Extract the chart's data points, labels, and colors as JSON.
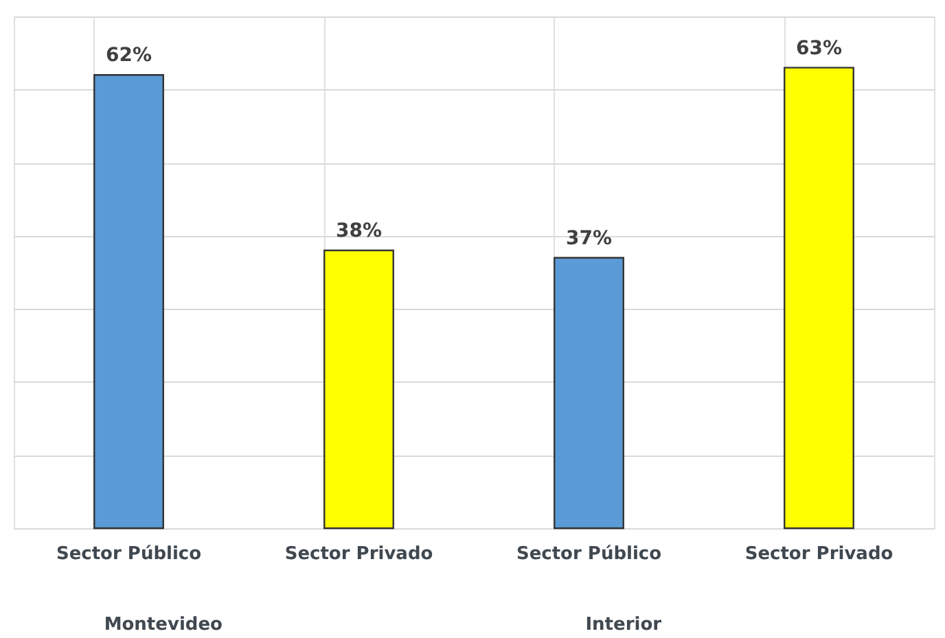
{
  "chart_data": {
    "type": "bar",
    "categories": [
      "Sector Público",
      "Sector Privado",
      "Sector Público",
      "Sector Privado"
    ],
    "values": [
      62,
      38,
      37,
      63
    ],
    "colors": [
      "#5b9bd5",
      "#ffff00",
      "#5b9bd5",
      "#ffff00"
    ],
    "value_labels": [
      "62%",
      "38%",
      "37%",
      "63%"
    ],
    "annotations": [
      "Montevideo",
      "Interior"
    ],
    "ylim": [
      0,
      70
    ],
    "yticks": [
      {
        "value": 0,
        "label": null
      },
      {
        "value": 10,
        "label": null
      },
      {
        "value": 20,
        "label": null
      },
      {
        "value": 30,
        "label": null
      },
      {
        "value": 40,
        "label": null
      },
      {
        "value": 50,
        "label": null
      },
      {
        "value": 60,
        "label": null
      },
      {
        "value": 70,
        "label": null
      }
    ],
    "grid": true,
    "tick_labels": "x"
  }
}
